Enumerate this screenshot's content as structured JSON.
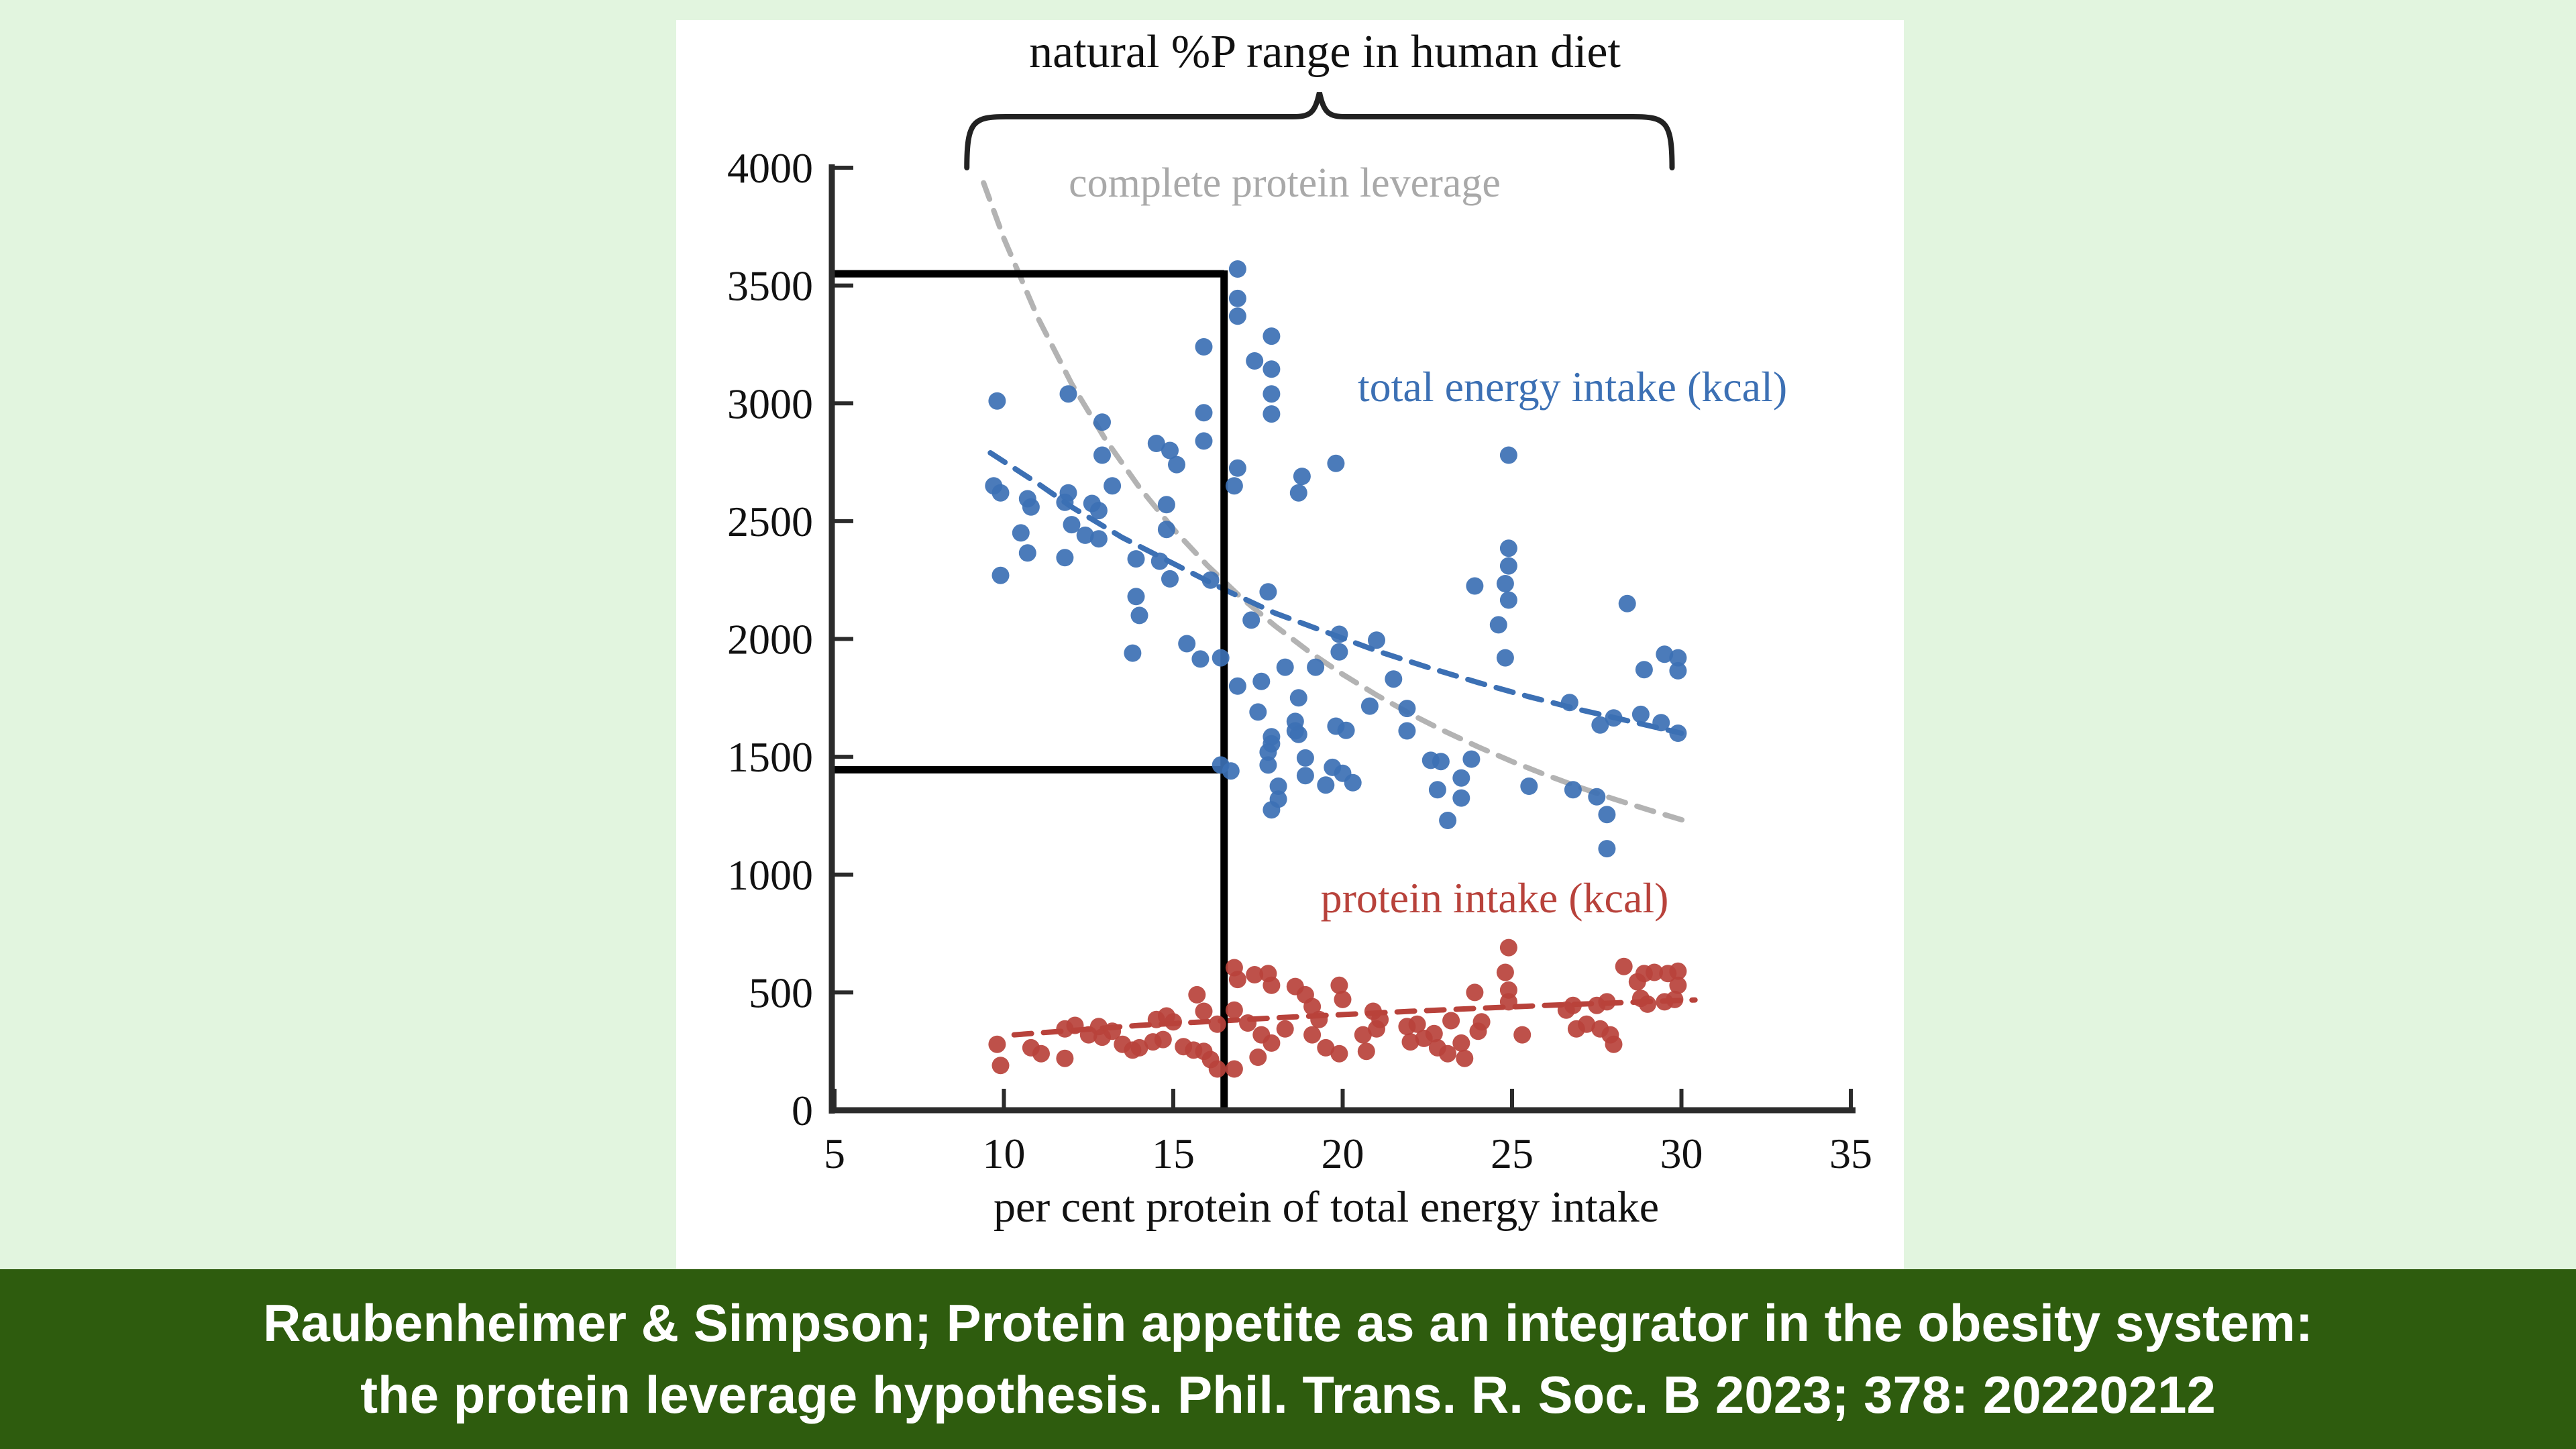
{
  "banner": {
    "line1": "Raubenheimer & Simpson; Protein appetite as an integrator in the obesity system:",
    "line2": "the protein leverage hypothesis. Phil. Trans. R. Soc. B 2023; 378: 20220212",
    "background_color": "#2e5c0e",
    "text_color": "#ffffff"
  },
  "page": {
    "background_color": "#e2f5df",
    "panel_color": "#ffffff"
  },
  "chart_data": {
    "type": "scatter",
    "title": "natural %P range in human diet",
    "xlabel": "per cent protein of total energy intake",
    "ylabel": "",
    "xlim": [
      5,
      35
    ],
    "ylim": [
      0,
      4000
    ],
    "x_ticks": [
      5,
      10,
      15,
      20,
      25,
      30,
      35
    ],
    "y_ticks": [
      0,
      500,
      1000,
      1500,
      2000,
      2500,
      3000,
      3500,
      4000
    ],
    "grid": false,
    "legend_position": "inline-text-labels",
    "brace_range_percent": [
      9.5,
      30
    ],
    "reference_box": {
      "description": "black guide lines: energy intakes at ends of natural %P range",
      "top_energy_kcal": 3550,
      "bottom_energy_kcal": 1445,
      "vertical_line_percent": 16.5
    },
    "series": [
      {
        "name": "total energy intake (kcal)",
        "color": "#3c70b4",
        "marker": "circle",
        "points": [
          [
            9.8,
            3010
          ],
          [
            11.9,
            3040
          ],
          [
            12.9,
            2920
          ],
          [
            12.9,
            2780
          ],
          [
            14.5,
            2830
          ],
          [
            14.9,
            2800
          ],
          [
            15.1,
            2740
          ],
          [
            15.9,
            2960
          ],
          [
            15.9,
            2840
          ],
          [
            15.9,
            3240
          ],
          [
            9.7,
            2650
          ],
          [
            9.9,
            2620
          ],
          [
            10.7,
            2595
          ],
          [
            10.8,
            2560
          ],
          [
            11.9,
            2620
          ],
          [
            11.8,
            2580
          ],
          [
            12.6,
            2575
          ],
          [
            12.8,
            2545
          ],
          [
            13.2,
            2650
          ],
          [
            12.0,
            2485
          ],
          [
            12.4,
            2440
          ],
          [
            12.8,
            2425
          ],
          [
            10.5,
            2450
          ],
          [
            10.7,
            2365
          ],
          [
            14.8,
            2465
          ],
          [
            14.8,
            2570
          ],
          [
            9.9,
            2270
          ],
          [
            11.8,
            2345
          ],
          [
            13.9,
            2340
          ],
          [
            14.6,
            2330
          ],
          [
            14.9,
            2255
          ],
          [
            16.1,
            2250
          ],
          [
            13.9,
            2180
          ],
          [
            14.0,
            2100
          ],
          [
            13.8,
            1940
          ],
          [
            15.4,
            1980
          ],
          [
            15.8,
            1915
          ],
          [
            16.4,
            1920
          ],
          [
            16.9,
            3570
          ],
          [
            16.9,
            3445
          ],
          [
            16.9,
            3370
          ],
          [
            17.9,
            3285
          ],
          [
            17.4,
            3180
          ],
          [
            17.9,
            3145
          ],
          [
            17.9,
            3040
          ],
          [
            17.9,
            2955
          ],
          [
            16.9,
            2725
          ],
          [
            18.8,
            2690
          ],
          [
            19.8,
            2745
          ],
          [
            18.7,
            2620
          ],
          [
            16.8,
            2650
          ],
          [
            17.8,
            2200
          ],
          [
            17.3,
            2080
          ],
          [
            16.9,
            1800
          ],
          [
            17.6,
            1820
          ],
          [
            18.3,
            1880
          ],
          [
            19.2,
            1880
          ],
          [
            18.7,
            1750
          ],
          [
            17.5,
            1690
          ],
          [
            17.9,
            1585
          ],
          [
            18.6,
            1610
          ],
          [
            17.9,
            1555
          ],
          [
            17.8,
            1520
          ],
          [
            17.8,
            1465
          ],
          [
            18.6,
            1650
          ],
          [
            18.7,
            1595
          ],
          [
            18.9,
            1495
          ],
          [
            19.8,
            1630
          ],
          [
            20.1,
            1612
          ],
          [
            19.7,
            1455
          ],
          [
            20.0,
            1430
          ],
          [
            20.3,
            1390
          ],
          [
            18.1,
            1375
          ],
          [
            18.1,
            1320
          ],
          [
            17.9,
            1275
          ],
          [
            16.4,
            1465
          ],
          [
            16.7,
            1440
          ],
          [
            18.9,
            1420
          ],
          [
            19.5,
            1380
          ],
          [
            19.9,
            2020
          ],
          [
            19.9,
            1945
          ],
          [
            21.0,
            1995
          ],
          [
            21.5,
            1830
          ],
          [
            20.8,
            1715
          ],
          [
            21.9,
            1705
          ],
          [
            21.9,
            1610
          ],
          [
            22.6,
            1485
          ],
          [
            22.9,
            1480
          ],
          [
            23.8,
            1490
          ],
          [
            23.5,
            1410
          ],
          [
            23.5,
            1325
          ],
          [
            22.8,
            1360
          ],
          [
            23.1,
            1230
          ],
          [
            25.5,
            1375
          ],
          [
            26.8,
            1360
          ],
          [
            27.5,
            1330
          ],
          [
            27.8,
            1255
          ],
          [
            27.8,
            1110
          ],
          [
            26.7,
            1730
          ],
          [
            23.9,
            2225
          ],
          [
            24.9,
            2780
          ],
          [
            24.9,
            2385
          ],
          [
            24.9,
            2310
          ],
          [
            24.8,
            2235
          ],
          [
            24.9,
            2165
          ],
          [
            24.6,
            2060
          ],
          [
            24.8,
            1920
          ],
          [
            28.4,
            2150
          ],
          [
            28.9,
            1870
          ],
          [
            29.5,
            1935
          ],
          [
            29.9,
            1920
          ],
          [
            29.9,
            1865
          ],
          [
            27.6,
            1635
          ],
          [
            28.0,
            1665
          ],
          [
            28.8,
            1680
          ],
          [
            29.4,
            1645
          ],
          [
            29.9,
            1600
          ]
        ]
      },
      {
        "name": "protein intake (kcal)",
        "color": "#b8423b",
        "marker": "circle",
        "points": [
          [
            9.8,
            280
          ],
          [
            9.9,
            190
          ],
          [
            10.8,
            265
          ],
          [
            11.1,
            240
          ],
          [
            11.8,
            345
          ],
          [
            12.1,
            360
          ],
          [
            12.5,
            320
          ],
          [
            12.8,
            355
          ],
          [
            12.9,
            310
          ],
          [
            13.2,
            335
          ],
          [
            13.5,
            280
          ],
          [
            11.8,
            220
          ],
          [
            13.8,
            255
          ],
          [
            14.0,
            265
          ],
          [
            14.5,
            385
          ],
          [
            14.8,
            400
          ],
          [
            15.0,
            375
          ],
          [
            14.4,
            290
          ],
          [
            14.7,
            300
          ],
          [
            15.3,
            270
          ],
          [
            15.6,
            255
          ],
          [
            15.9,
            250
          ],
          [
            15.7,
            490
          ],
          [
            15.9,
            420
          ],
          [
            16.1,
            215
          ],
          [
            16.3,
            175
          ],
          [
            16.3,
            365
          ],
          [
            16.8,
            605
          ],
          [
            16.9,
            555
          ],
          [
            17.4,
            575
          ],
          [
            17.8,
            580
          ],
          [
            17.9,
            530
          ],
          [
            16.8,
            425
          ],
          [
            16.8,
            175
          ],
          [
            17.2,
            370
          ],
          [
            17.6,
            320
          ],
          [
            17.9,
            285
          ],
          [
            17.5,
            225
          ],
          [
            18.3,
            345
          ],
          [
            18.6,
            525
          ],
          [
            18.9,
            490
          ],
          [
            19.1,
            440
          ],
          [
            19.3,
            385
          ],
          [
            19.1,
            320
          ],
          [
            19.5,
            265
          ],
          [
            19.9,
            240
          ],
          [
            19.9,
            530
          ],
          [
            20.0,
            470
          ],
          [
            20.9,
            420
          ],
          [
            21.1,
            385
          ],
          [
            20.6,
            320
          ],
          [
            21.0,
            345
          ],
          [
            20.7,
            250
          ],
          [
            21.9,
            355
          ],
          [
            22.2,
            365
          ],
          [
            22.0,
            290
          ],
          [
            22.4,
            305
          ],
          [
            22.7,
            325
          ],
          [
            22.8,
            265
          ],
          [
            23.2,
            380
          ],
          [
            23.1,
            240
          ],
          [
            23.5,
            285
          ],
          [
            23.6,
            220
          ],
          [
            24.0,
            335
          ],
          [
            24.1,
            375
          ],
          [
            23.9,
            500
          ],
          [
            24.9,
            690
          ],
          [
            24.8,
            585
          ],
          [
            24.9,
            510
          ],
          [
            24.9,
            460
          ],
          [
            25.3,
            320
          ],
          [
            26.6,
            425
          ],
          [
            26.8,
            445
          ],
          [
            26.9,
            345
          ],
          [
            27.2,
            365
          ],
          [
            27.5,
            445
          ],
          [
            27.8,
            460
          ],
          [
            27.6,
            345
          ],
          [
            27.9,
            320
          ],
          [
            28.0,
            280
          ],
          [
            28.3,
            610
          ],
          [
            28.7,
            545
          ],
          [
            28.9,
            580
          ],
          [
            29.2,
            585
          ],
          [
            28.8,
            475
          ],
          [
            29.0,
            450
          ],
          [
            29.6,
            580
          ],
          [
            29.9,
            590
          ],
          [
            29.9,
            530
          ],
          [
            29.5,
            460
          ],
          [
            29.8,
            470
          ]
        ]
      }
    ],
    "trend_curves": [
      {
        "label": "complete protein leverage",
        "color": "#b3b3b3",
        "style": "dashed",
        "points": [
          [
            9.4,
            3936
          ],
          [
            10,
            3700
          ],
          [
            11,
            3364
          ],
          [
            12,
            3083
          ],
          [
            13,
            2846
          ],
          [
            14,
            2643
          ],
          [
            15,
            2467
          ],
          [
            16,
            2313
          ],
          [
            17,
            2176
          ],
          [
            18,
            2056
          ],
          [
            19,
            1947
          ],
          [
            20,
            1850
          ],
          [
            21,
            1762
          ],
          [
            22,
            1682
          ],
          [
            23,
            1609
          ],
          [
            24,
            1542
          ],
          [
            25,
            1480
          ],
          [
            26,
            1423
          ],
          [
            27,
            1370
          ],
          [
            28,
            1321
          ],
          [
            29,
            1276
          ],
          [
            30,
            1233
          ],
          [
            30.3,
            1221
          ]
        ]
      },
      {
        "label": "total energy intake trend",
        "color": "#3c70b4",
        "style": "dashed",
        "points": [
          [
            9.6,
            2790
          ],
          [
            11,
            2660
          ],
          [
            12,
            2560
          ],
          [
            13.5,
            2430
          ],
          [
            15,
            2320
          ],
          [
            16.5,
            2210
          ],
          [
            18,
            2110
          ],
          [
            19.5,
            2030
          ],
          [
            21,
            1950
          ],
          [
            22.5,
            1880
          ],
          [
            24,
            1815
          ],
          [
            25.5,
            1755
          ],
          [
            27,
            1700
          ],
          [
            28.5,
            1650
          ],
          [
            30,
            1600
          ]
        ]
      },
      {
        "label": "protein intake trend",
        "color": "#b8423b",
        "style": "dashed",
        "points": [
          [
            10.3,
            320
          ],
          [
            14,
            360
          ],
          [
            18,
            392
          ],
          [
            22,
            420
          ],
          [
            26,
            445
          ],
          [
            30.4,
            468
          ]
        ]
      }
    ]
  }
}
